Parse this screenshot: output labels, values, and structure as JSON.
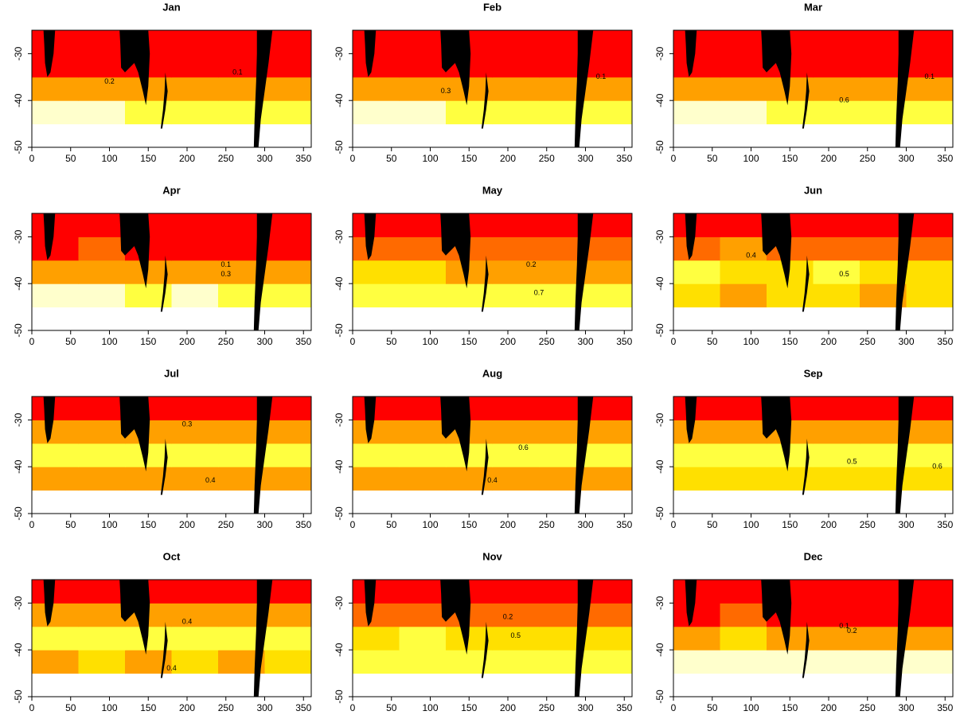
{
  "chart_data": [
    {
      "type": "heatmap",
      "title": "Jan",
      "xlim": [
        0,
        360
      ],
      "ylim": [
        -50,
        -25
      ],
      "xticks": [
        0,
        50,
        100,
        150,
        200,
        250,
        300,
        350
      ],
      "yticks": [
        -30,
        -40,
        -50
      ],
      "xbins": [
        0,
        60,
        120,
        180,
        240,
        300,
        360
      ],
      "ybins": [
        -45,
        -40,
        -35,
        -30,
        -25
      ],
      "z": [
        [
          0.7,
          0.7,
          0.6,
          0.6,
          0.6,
          0.6
        ],
        [
          0.3,
          0.35,
          0.3,
          0.3,
          0.3,
          0.3
        ],
        [
          0.05,
          0.1,
          0.05,
          0.05,
          0.05,
          0.05
        ],
        [
          0,
          0,
          0,
          0,
          0,
          0
        ]
      ],
      "contour_labels": [
        {
          "x": 100,
          "y": -36,
          "value": 0.2
        },
        {
          "x": 265,
          "y": -34,
          "value": 0.1
        }
      ]
    },
    {
      "type": "heatmap",
      "title": "Feb",
      "xlim": [
        0,
        360
      ],
      "ylim": [
        -50,
        -25
      ],
      "xticks": [
        0,
        50,
        100,
        150,
        200,
        250,
        300,
        350
      ],
      "yticks": [
        -30,
        -40,
        -50
      ],
      "xbins": [
        0,
        60,
        120,
        180,
        240,
        300,
        360
      ],
      "ybins": [
        -45,
        -40,
        -35,
        -30,
        -25
      ],
      "z": [
        [
          0.7,
          0.7,
          0.6,
          0.6,
          0.6,
          0.6
        ],
        [
          0.3,
          0.35,
          0.3,
          0.3,
          0.3,
          0.3
        ],
        [
          0.05,
          0.1,
          0.05,
          0.05,
          0.05,
          0.05
        ],
        [
          0,
          0,
          0,
          0,
          0,
          0
        ]
      ],
      "contour_labels": [
        {
          "x": 120,
          "y": -38,
          "value": 0.3
        },
        {
          "x": 320,
          "y": -35,
          "value": 0.1
        }
      ]
    },
    {
      "type": "heatmap",
      "title": "Mar",
      "xlim": [
        0,
        360
      ],
      "ylim": [
        -50,
        -25
      ],
      "xticks": [
        0,
        50,
        100,
        150,
        200,
        250,
        300,
        350
      ],
      "yticks": [
        -30,
        -40,
        -50
      ],
      "xbins": [
        0,
        60,
        120,
        180,
        240,
        300,
        360
      ],
      "ybins": [
        -45,
        -40,
        -35,
        -30,
        -25
      ],
      "z": [
        [
          0.7,
          0.7,
          0.6,
          0.6,
          0.6,
          0.6
        ],
        [
          0.3,
          0.35,
          0.3,
          0.3,
          0.3,
          0.3
        ],
        [
          0.05,
          0.1,
          0.05,
          0.05,
          0.05,
          0.05
        ],
        [
          0,
          0,
          0,
          0,
          0,
          0
        ]
      ],
      "contour_labels": [
        {
          "x": 220,
          "y": -40,
          "value": 0.6
        },
        {
          "x": 330,
          "y": -35,
          "value": 0.1
        }
      ]
    },
    {
      "type": "heatmap",
      "title": "Apr",
      "xlim": [
        0,
        360
      ],
      "ylim": [
        -50,
        -25
      ],
      "xticks": [
        0,
        50,
        100,
        150,
        200,
        250,
        300,
        350
      ],
      "yticks": [
        -30,
        -40,
        -50
      ],
      "xbins": [
        0,
        60,
        120,
        180,
        240,
        300,
        360
      ],
      "ybins": [
        -45,
        -40,
        -35,
        -30,
        -25
      ],
      "z": [
        [
          0.7,
          0.7,
          0.6,
          0.7,
          0.6,
          0.6
        ],
        [
          0.3,
          0.35,
          0.3,
          0.3,
          0.3,
          0.3
        ],
        [
          0.1,
          0.15,
          0.1,
          0.1,
          0.1,
          0.1
        ],
        [
          0,
          0,
          0,
          0,
          0,
          0
        ]
      ],
      "contour_labels": [
        {
          "x": 250,
          "y": -36,
          "value": 0.1
        },
        {
          "x": 250,
          "y": -38,
          "value": 0.3
        }
      ]
    },
    {
      "type": "heatmap",
      "title": "May",
      "xlim": [
        0,
        360
      ],
      "ylim": [
        -50,
        -25
      ],
      "xticks": [
        0,
        50,
        100,
        150,
        200,
        250,
        300,
        350
      ],
      "yticks": [
        -30,
        -40,
        -50
      ],
      "xbins": [
        0,
        60,
        120,
        180,
        240,
        300,
        360
      ],
      "ybins": [
        -45,
        -40,
        -35,
        -30,
        -25
      ],
      "z": [
        [
          0.6,
          0.6,
          0.6,
          0.6,
          0.6,
          0.6
        ],
        [
          0.45,
          0.5,
          0.4,
          0.4,
          0.4,
          0.4
        ],
        [
          0.15,
          0.2,
          0.15,
          0.15,
          0.15,
          0.15
        ],
        [
          0,
          0,
          0,
          0,
          0,
          0
        ]
      ],
      "contour_labels": [
        {
          "x": 230,
          "y": -36,
          "value": 0.2
        },
        {
          "x": 240,
          "y": -42,
          "value": 0.7
        }
      ]
    },
    {
      "type": "heatmap",
      "title": "Jun",
      "xlim": [
        0,
        360
      ],
      "ylim": [
        -50,
        -25
      ],
      "xticks": [
        0,
        50,
        100,
        150,
        200,
        250,
        300,
        350
      ],
      "yticks": [
        -30,
        -40,
        -50
      ],
      "xbins": [
        0,
        60,
        120,
        180,
        240,
        300,
        360
      ],
      "ybins": [
        -45,
        -40,
        -35,
        -30,
        -25
      ],
      "z": [
        [
          0.45,
          0.4,
          0.45,
          0.45,
          0.4,
          0.45
        ],
        [
          0.55,
          0.45,
          0.5,
          0.55,
          0.5,
          0.5
        ],
        [
          0.25,
          0.3,
          0.25,
          0.25,
          0.2,
          0.25
        ],
        [
          0,
          0.05,
          0,
          0,
          0,
          0
        ]
      ],
      "contour_labels": [
        {
          "x": 100,
          "y": -34,
          "value": 0.4
        },
        {
          "x": 220,
          "y": -38,
          "value": 0.5
        }
      ]
    },
    {
      "type": "heatmap",
      "title": "Jul",
      "xlim": [
        0,
        360
      ],
      "ylim": [
        -50,
        -25
      ],
      "xticks": [
        0,
        50,
        100,
        150,
        200,
        250,
        300,
        350
      ],
      "yticks": [
        -30,
        -40,
        -50
      ],
      "xbins": [
        0,
        60,
        120,
        180,
        240,
        300,
        360
      ],
      "ybins": [
        -45,
        -40,
        -35,
        -30,
        -25
      ],
      "z": [
        [
          0.4,
          0.4,
          0.4,
          0.4,
          0.4,
          0.4
        ],
        [
          0.55,
          0.55,
          0.55,
          0.55,
          0.55,
          0.6
        ],
        [
          0.3,
          0.35,
          0.3,
          0.3,
          0.3,
          0.3
        ],
        [
          0.05,
          0.05,
          0.05,
          0,
          0,
          0.05
        ]
      ],
      "contour_labels": [
        {
          "x": 200,
          "y": -31,
          "value": 0.3
        },
        {
          "x": 230,
          "y": -43,
          "value": 0.4
        }
      ]
    },
    {
      "type": "heatmap",
      "title": "Aug",
      "xlim": [
        0,
        360
      ],
      "ylim": [
        -50,
        -25
      ],
      "xticks": [
        0,
        50,
        100,
        150,
        200,
        250,
        300,
        350
      ],
      "yticks": [
        -30,
        -40,
        -50
      ],
      "xbins": [
        0,
        60,
        120,
        180,
        240,
        300,
        360
      ],
      "ybins": [
        -45,
        -40,
        -35,
        -30,
        -25
      ],
      "z": [
        [
          0.4,
          0.4,
          0.4,
          0.4,
          0.4,
          0.4
        ],
        [
          0.55,
          0.55,
          0.55,
          0.55,
          0.55,
          0.6
        ],
        [
          0.3,
          0.35,
          0.3,
          0.3,
          0.3,
          0.3
        ],
        [
          0.05,
          0.05,
          0.05,
          0,
          0,
          0.05
        ]
      ],
      "contour_labels": [
        {
          "x": 220,
          "y": -36,
          "value": 0.6
        },
        {
          "x": 180,
          "y": -43,
          "value": 0.4
        }
      ]
    },
    {
      "type": "heatmap",
      "title": "Sep",
      "xlim": [
        0,
        360
      ],
      "ylim": [
        -50,
        -25
      ],
      "xticks": [
        0,
        50,
        100,
        150,
        200,
        250,
        300,
        350
      ],
      "yticks": [
        -30,
        -40,
        -50
      ],
      "xbins": [
        0,
        60,
        120,
        180,
        240,
        300,
        360
      ],
      "ybins": [
        -45,
        -40,
        -35,
        -30,
        -25
      ],
      "z": [
        [
          0.45,
          0.45,
          0.45,
          0.45,
          0.5,
          0.45
        ],
        [
          0.55,
          0.6,
          0.55,
          0.6,
          0.6,
          0.6
        ],
        [
          0.3,
          0.35,
          0.3,
          0.3,
          0.3,
          0.3
        ],
        [
          0.05,
          0.05,
          0.05,
          0.05,
          0.05,
          0.05
        ]
      ],
      "contour_labels": [
        {
          "x": 230,
          "y": -39,
          "value": 0.5
        },
        {
          "x": 340,
          "y": -40,
          "value": 0.6
        }
      ]
    },
    {
      "type": "heatmap",
      "title": "Oct",
      "xlim": [
        0,
        360
      ],
      "ylim": [
        -50,
        -25
      ],
      "xticks": [
        0,
        50,
        100,
        150,
        200,
        250,
        300,
        350
      ],
      "yticks": [
        -30,
        -40,
        -50
      ],
      "xbins": [
        0,
        60,
        120,
        180,
        240,
        300,
        360
      ],
      "ybins": [
        -45,
        -40,
        -35,
        -30,
        -25
      ],
      "z": [
        [
          0.4,
          0.45,
          0.4,
          0.45,
          0.4,
          0.45
        ],
        [
          0.55,
          0.55,
          0.6,
          0.55,
          0.55,
          0.6
        ],
        [
          0.3,
          0.35,
          0.3,
          0.35,
          0.3,
          0.35
        ],
        [
          0.05,
          0.05,
          0.05,
          0.05,
          0.05,
          0.05
        ]
      ],
      "contour_labels": [
        {
          "x": 200,
          "y": -34,
          "value": 0.4
        },
        {
          "x": 180,
          "y": -44,
          "value": 0.4
        }
      ]
    },
    {
      "type": "heatmap",
      "title": "Nov",
      "xlim": [
        0,
        360
      ],
      "ylim": [
        -50,
        -25
      ],
      "xticks": [
        0,
        50,
        100,
        150,
        200,
        250,
        300,
        350
      ],
      "yticks": [
        -30,
        -40,
        -50
      ],
      "xbins": [
        0,
        60,
        120,
        180,
        240,
        300,
        360
      ],
      "ybins": [
        -45,
        -40,
        -35,
        -30,
        -25
      ],
      "z": [
        [
          0.55,
          0.6,
          0.55,
          0.55,
          0.55,
          0.55
        ],
        [
          0.5,
          0.55,
          0.5,
          0.5,
          0.5,
          0.5
        ],
        [
          0.15,
          0.2,
          0.15,
          0.15,
          0.15,
          0.15
        ],
        [
          0,
          0,
          0,
          0,
          0,
          0
        ]
      ],
      "contour_labels": [
        {
          "x": 200,
          "y": -33,
          "value": 0.2
        },
        {
          "x": 210,
          "y": -37,
          "value": 0.5
        }
      ]
    },
    {
      "type": "heatmap",
      "title": "Dec",
      "xlim": [
        0,
        360
      ],
      "ylim": [
        -50,
        -25
      ],
      "xticks": [
        0,
        50,
        100,
        150,
        200,
        250,
        300,
        350
      ],
      "yticks": [
        -30,
        -40,
        -50
      ],
      "xbins": [
        0,
        60,
        120,
        180,
        240,
        300,
        360
      ],
      "ybins": [
        -45,
        -40,
        -35,
        -30,
        -25
      ],
      "z": [
        [
          0.65,
          0.65,
          0.65,
          0.7,
          0.65,
          0.65
        ],
        [
          0.4,
          0.45,
          0.35,
          0.35,
          0.35,
          0.35
        ],
        [
          0.1,
          0.15,
          0.1,
          0.1,
          0.1,
          0.1
        ],
        [
          0,
          0,
          0,
          0,
          0,
          0
        ]
      ],
      "contour_labels": [
        {
          "x": 220,
          "y": -35,
          "value": 0.1
        },
        {
          "x": 230,
          "y": -36,
          "value": 0.2
        }
      ]
    }
  ],
  "color_scale": {
    "colors": [
      "#ff0000",
      "#ff6a00",
      "#ffa000",
      "#ffe000",
      "#ffff40",
      "#ffffcc"
    ],
    "breaks": [
      0,
      0.15,
      0.3,
      0.45,
      0.55,
      0.65,
      1
    ]
  }
}
